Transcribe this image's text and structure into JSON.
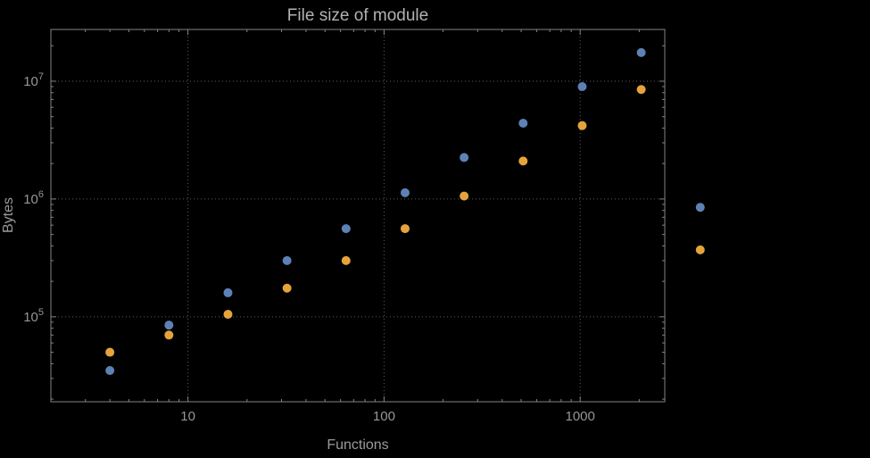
{
  "theme": {
    "background": "#000000",
    "frame_color": "#848484",
    "grid_color": "#5e5e5e",
    "tick_label_color": "#969696",
    "axis_label_color": "#9a9a9a",
    "title_color": "#b2b2b2"
  },
  "chart_data": {
    "type": "scatter",
    "title": "File size of module",
    "xlabel": "Functions",
    "ylabel": "Bytes",
    "xscale": "log",
    "yscale": "log",
    "xlim": [
      2,
      2700
    ],
    "ylim": [
      19000,
      27500000
    ],
    "grid": true,
    "has_legend": false,
    "marker": "filled-circle",
    "x_ticks": [
      {
        "value": 10,
        "label": "10"
      },
      {
        "value": 100,
        "label": "100"
      },
      {
        "value": 1000,
        "label": "1000"
      }
    ],
    "y_ticks": [
      {
        "value": 100000,
        "mantissa": "10",
        "exponent": "5"
      },
      {
        "value": 1000000,
        "mantissa": "10",
        "exponent": "6"
      },
      {
        "value": 10000000,
        "mantissa": "10",
        "exponent": "7"
      }
    ],
    "x": [
      4,
      8,
      16,
      32,
      64,
      128,
      256,
      512,
      1024,
      2048,
      4096
    ],
    "series": [
      {
        "name": "blue",
        "color": "#5E81B5",
        "values": [
          35000,
          85000,
          160000,
          300000,
          560000,
          1130000,
          2250000,
          4400000,
          9000000,
          17500000,
          850000
        ]
      },
      {
        "name": "orange",
        "color": "#E5A33B",
        "values": [
          50000,
          70000,
          105000,
          175000,
          300000,
          560000,
          1060000,
          2100000,
          4200000,
          8500000,
          370000
        ]
      }
    ]
  }
}
